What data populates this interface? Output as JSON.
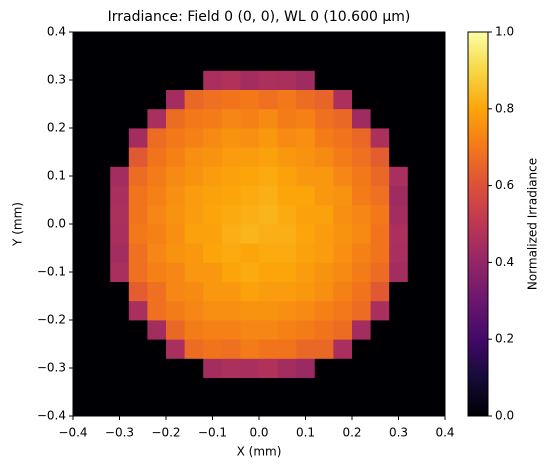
{
  "chart_data": {
    "type": "heatmap",
    "title": "Irradiance: Field 0 (0, 0), WL 0 (10.600 µm)",
    "xlabel": "X (mm)",
    "ylabel": "Y (mm)",
    "colorbar_label": "Normalized Irradiance",
    "colormap": "inferno",
    "xbins": [
      -0.4,
      -0.36,
      -0.32,
      -0.28,
      -0.24,
      -0.2,
      -0.16,
      -0.12,
      -0.08,
      -0.04,
      0,
      0.04,
      0.08,
      0.12,
      0.16,
      0.2,
      0.24,
      0.28,
      0.32,
      0.36,
      0.4
    ],
    "ybins": [
      -0.4,
      -0.36,
      -0.32,
      -0.28,
      -0.24,
      -0.2,
      -0.16,
      -0.12,
      -0.08,
      -0.04,
      0,
      0.04,
      0.08,
      0.12,
      0.16,
      0.2,
      0.24,
      0.28,
      0.32,
      0.36,
      0.4
    ],
    "z": [
      [
        0,
        0,
        0,
        0,
        0,
        0,
        0,
        0,
        0,
        0,
        0,
        0,
        0,
        0,
        0,
        0,
        0,
        0,
        0,
        0
      ],
      [
        0,
        0,
        0,
        0,
        0,
        0,
        0,
        0,
        0,
        0,
        0,
        0,
        0,
        0,
        0,
        0,
        0,
        0,
        0,
        0
      ],
      [
        0,
        0,
        0,
        0,
        0,
        0,
        0,
        0.44,
        0.46,
        0.45,
        0.47,
        0.44,
        0.42,
        0,
        0,
        0,
        0,
        0,
        0,
        0
      ],
      [
        0,
        0,
        0,
        0,
        0,
        0.45,
        0.67,
        0.69,
        0.68,
        0.71,
        0.69,
        0.69,
        0.66,
        0.66,
        0.45,
        0,
        0,
        0,
        0,
        0
      ],
      [
        0,
        0,
        0,
        0,
        0.44,
        0.66,
        0.71,
        0.72,
        0.72,
        0.73,
        0.73,
        0.72,
        0.71,
        0.69,
        0.67,
        0.44,
        0,
        0,
        0,
        0
      ],
      [
        0,
        0,
        0,
        0.45,
        0.68,
        0.71,
        0.73,
        0.75,
        0.75,
        0.76,
        0.76,
        0.75,
        0.74,
        0.72,
        0.7,
        0.67,
        0.45,
        0,
        0,
        0
      ],
      [
        0,
        0,
        0,
        0.63,
        0.68,
        0.73,
        0.74,
        0.77,
        0.77,
        0.79,
        0.78,
        0.78,
        0.77,
        0.75,
        0.72,
        0.69,
        0.62,
        0,
        0,
        0
      ],
      [
        0,
        0,
        0.45,
        0.68,
        0.72,
        0.73,
        0.77,
        0.77,
        0.8,
        0.81,
        0.8,
        0.8,
        0.78,
        0.76,
        0.74,
        0.71,
        0.67,
        0.44,
        0,
        0
      ],
      [
        0,
        0,
        0.44,
        0.68,
        0.73,
        0.76,
        0.77,
        0.8,
        0.81,
        0.8,
        0.81,
        0.81,
        0.79,
        0.78,
        0.75,
        0.72,
        0.69,
        0.45,
        0,
        0
      ],
      [
        0,
        0,
        0.45,
        0.7,
        0.72,
        0.75,
        0.79,
        0.79,
        0.82,
        0.83,
        0.82,
        0.82,
        0.8,
        0.78,
        0.76,
        0.74,
        0.69,
        0.46,
        0,
        0
      ],
      [
        0,
        0,
        0.46,
        0.69,
        0.73,
        0.76,
        0.78,
        0.8,
        0.81,
        0.82,
        0.83,
        0.81,
        0.79,
        0.79,
        0.75,
        0.73,
        0.7,
        0.44,
        0,
        0
      ],
      [
        0,
        0,
        0.45,
        0.69,
        0.72,
        0.75,
        0.78,
        0.79,
        0.8,
        0.81,
        0.82,
        0.8,
        0.8,
        0.77,
        0.76,
        0.71,
        0.68,
        0.43,
        0,
        0
      ],
      [
        0,
        0,
        0.44,
        0.67,
        0.71,
        0.74,
        0.76,
        0.78,
        0.79,
        0.8,
        0.81,
        0.79,
        0.77,
        0.77,
        0.73,
        0.7,
        0.66,
        0.45,
        0,
        0
      ],
      [
        0,
        0,
        0,
        0.62,
        0.69,
        0.72,
        0.75,
        0.76,
        0.78,
        0.78,
        0.79,
        0.77,
        0.76,
        0.74,
        0.71,
        0.68,
        0.63,
        0,
        0,
        0
      ],
      [
        0,
        0,
        0,
        0.44,
        0.67,
        0.7,
        0.72,
        0.74,
        0.76,
        0.75,
        0.77,
        0.74,
        0.75,
        0.71,
        0.69,
        0.66,
        0.46,
        0,
        0,
        0
      ],
      [
        0,
        0,
        0,
        0,
        0.45,
        0.67,
        0.7,
        0.71,
        0.73,
        0.72,
        0.74,
        0.71,
        0.72,
        0.68,
        0.66,
        0.43,
        0,
        0,
        0,
        0
      ],
      [
        0,
        0,
        0,
        0,
        0,
        0.44,
        0.66,
        0.68,
        0.69,
        0.7,
        0.68,
        0.7,
        0.67,
        0.65,
        0.46,
        0,
        0,
        0,
        0,
        0
      ],
      [
        0,
        0,
        0,
        0,
        0,
        0,
        0,
        0.45,
        0.47,
        0.44,
        0.46,
        0.45,
        0.43,
        0,
        0,
        0,
        0,
        0,
        0,
        0
      ],
      [
        0,
        0,
        0,
        0,
        0,
        0,
        0,
        0,
        0,
        0,
        0,
        0,
        0,
        0,
        0,
        0,
        0,
        0,
        0,
        0
      ],
      [
        0,
        0,
        0,
        0,
        0,
        0,
        0,
        0,
        0,
        0,
        0,
        0,
        0,
        0,
        0,
        0,
        0,
        0,
        0,
        0
      ]
    ],
    "xlim": [
      -0.4,
      0.4
    ],
    "ylim": [
      -0.4,
      0.4
    ],
    "zlim": [
      0,
      1
    ],
    "xticks": [
      {
        "value": -0.4,
        "label": "−0.4"
      },
      {
        "value": -0.3,
        "label": "−0.3"
      },
      {
        "value": -0.2,
        "label": "−0.2"
      },
      {
        "value": -0.1,
        "label": "−0.1"
      },
      {
        "value": 0,
        "label": "0.0"
      },
      0.1,
      0.2,
      0.3,
      0.4
    ],
    "yticks": [
      {
        "value": -0.4,
        "label": "−0.4"
      },
      {
        "value": -0.3,
        "label": "−0.3"
      },
      {
        "value": -0.2,
        "label": "−0.2"
      },
      {
        "value": -0.1,
        "label": "−0.1"
      },
      {
        "value": 0,
        "label": "0.0"
      },
      0.1,
      0.2,
      0.3,
      0.4
    ],
    "zticks": [
      {
        "value": 0,
        "label": "0.0"
      },
      0.2,
      0.4,
      0.6,
      0.8,
      {
        "value": 1,
        "label": "1.0"
      }
    ]
  }
}
